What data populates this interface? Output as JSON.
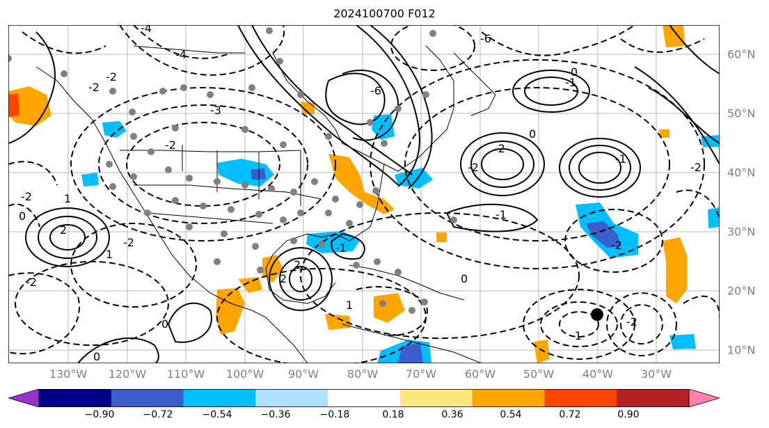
{
  "title": "2024100700 F012",
  "lon_labels": [
    "130°W",
    "120°W",
    "110°W",
    "100°W",
    "90°W",
    "80°W",
    "70°W",
    "60°W",
    "50°W",
    "40°W",
    "30°W"
  ],
  "lat_labels": [
    "60°N",
    "50°N",
    "40°N",
    "30°N",
    "20°N",
    "10°N"
  ],
  "colorbar": {
    "colors": [
      "#9932cc",
      "#00008b",
      "#3a5fcd",
      "#00bfff",
      "#b0e2ff",
      "#ffffff",
      "#ffe680",
      "#ffa500",
      "#ff4500",
      "#b22222",
      "#ff82ab"
    ],
    "ticks": [
      "−0.90",
      "−0.72",
      "−0.54",
      "−0.36",
      "−0.18",
      "0.18",
      "0.36",
      "0.54",
      "0.72",
      "0.90"
    ]
  },
  "contour_labels": [
    {
      "text": "-4"
    },
    {
      "text": "-4"
    },
    {
      "text": "-6"
    },
    {
      "text": "-6"
    },
    {
      "text": "-3"
    },
    {
      "text": "-2"
    },
    {
      "text": "-2"
    },
    {
      "text": "-2"
    },
    {
      "text": "-2"
    },
    {
      "text": "-2"
    },
    {
      "text": "-1"
    },
    {
      "text": "-1"
    },
    {
      "text": "-1"
    },
    {
      "text": "-1"
    },
    {
      "text": "-2"
    },
    {
      "text": "-2"
    },
    {
      "text": "-2"
    },
    {
      "text": "-2"
    },
    {
      "text": "0"
    },
    {
      "text": "0"
    },
    {
      "text": "0"
    },
    {
      "text": "0"
    },
    {
      "text": "0"
    },
    {
      "text": "0"
    },
    {
      "text": "1"
    },
    {
      "text": "1"
    },
    {
      "text": "1"
    },
    {
      "text": "2"
    },
    {
      "text": "2"
    },
    {
      "text": "2"
    },
    {
      "text": "-1"
    },
    {
      "text": "-2"
    },
    {
      "text": "-2"
    }
  ]
}
